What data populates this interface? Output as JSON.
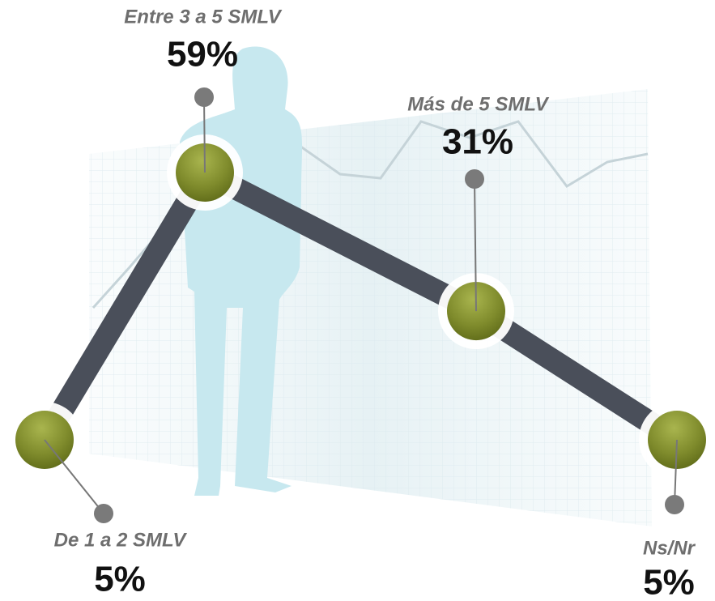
{
  "chart_data": {
    "type": "line",
    "categories": [
      "De 1 a 2 SMLV",
      "Entre 3 a 5 SMLV",
      "Más de 5 SMLV",
      "Ns/Nr"
    ],
    "values": [
      5,
      59,
      31,
      5
    ],
    "value_labels": [
      "5%",
      "59%",
      "31%",
      "5%"
    ],
    "color": "#4a4f5a"
  }
}
